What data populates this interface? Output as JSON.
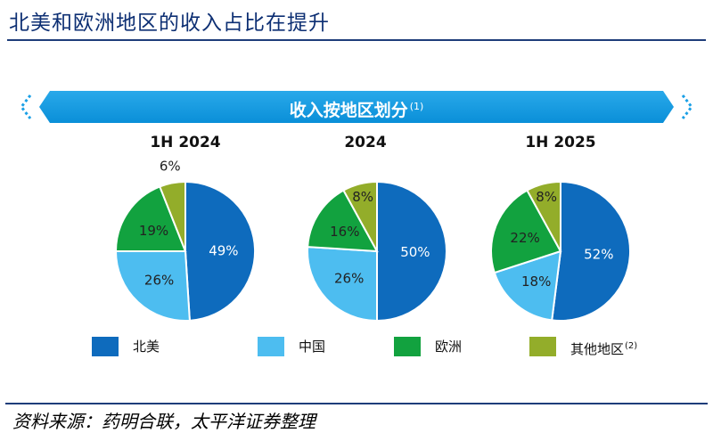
{
  "page": {
    "title": "北美和欧洲地区的收入占比在提升",
    "banner_title": "收入按地区划分",
    "banner_note": "(1)",
    "source": "资料来源：药明合联，太平洋证券整理"
  },
  "colors": {
    "北美": "#0e6bbd",
    "中国": "#4dbdf0",
    "欧洲": "#12a23f",
    "其他地区": "#93ad2a",
    "title": "#0d2f73",
    "banner": "#0a8fd8"
  },
  "legend": [
    {
      "label": "北美",
      "note": ""
    },
    {
      "label": "中国",
      "note": ""
    },
    {
      "label": "欧洲",
      "note": ""
    },
    {
      "label": "其他地区",
      "note": "(2)"
    }
  ],
  "chart_data": [
    {
      "type": "pie",
      "title": "1H 2024",
      "categories": [
        "北美",
        "中国",
        "欧洲",
        "其他地区"
      ],
      "values": [
        49,
        26,
        19,
        6
      ],
      "labels": [
        "49%",
        "26%",
        "19%",
        "6%"
      ],
      "legend_position": "bottom"
    },
    {
      "type": "pie",
      "title": "2024",
      "categories": [
        "北美",
        "中国",
        "欧洲",
        "其他地区"
      ],
      "values": [
        50,
        26,
        16,
        8
      ],
      "labels": [
        "50%",
        "26%",
        "16%",
        "8%"
      ],
      "legend_position": "bottom"
    },
    {
      "type": "pie",
      "title": "1H 2025",
      "categories": [
        "北美",
        "中国",
        "欧洲",
        "其他地区"
      ],
      "values": [
        52,
        18,
        22,
        8
      ],
      "labels": [
        "52%",
        "18%",
        "22%",
        "8%"
      ],
      "legend_position": "bottom"
    }
  ]
}
